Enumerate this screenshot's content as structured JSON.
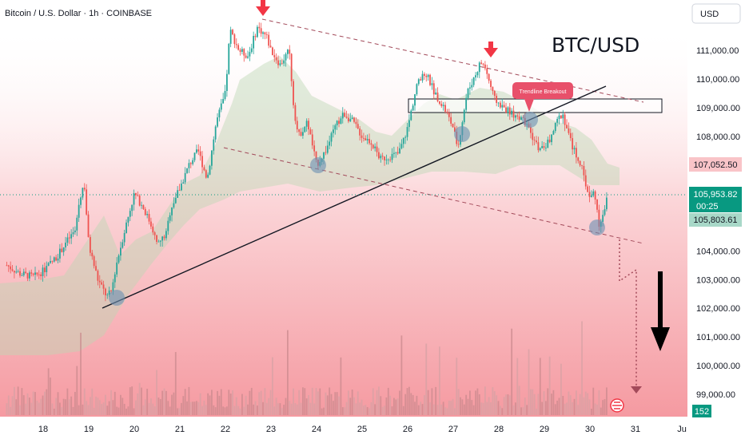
{
  "header": {
    "symbol_title": "Bitcoin / U.S. Dollar · 1h · COINBASE"
  },
  "overlay_title": "BTC/USD",
  "breakout_label": "Trendline Breakout",
  "currency_button": "USD",
  "price_badges": {
    "resistance": "107,052.50",
    "last": "105,953.82",
    "countdown": "00:25",
    "bid": "105,803.61",
    "volume": "152"
  },
  "colors": {
    "up": "#26a69a",
    "down": "#ef5350",
    "arrow": "#f23645",
    "trendline": "#131722",
    "dashed": "#a34a5a",
    "cloud_fill": "#a9d0a0",
    "background_wash": "#f7b7bc",
    "last_badge": "#089981",
    "resistance_badge": "#f9c4c8"
  },
  "chart_data": {
    "type": "candlestick",
    "title": "Bitcoin / U.S. Dollar · 1h · COINBASE",
    "x_tick_labels": [
      "18",
      "19",
      "20",
      "21",
      "22",
      "23",
      "24",
      "25",
      "26",
      "27",
      "28",
      "29",
      "30",
      "31",
      "Ju"
    ],
    "y_tick_labels": [
      "99,000.00",
      "100,000.00",
      "101,000.00",
      "102,000.00",
      "103,000.00",
      "104,000.00",
      "105,000.00",
      "106,000.00",
      "107,000.00",
      "108,000.00",
      "109,000.00",
      "110,000.00",
      "111,000.00"
    ],
    "ylim": [
      98600,
      112600
    ],
    "price_path": [
      [
        17.2,
        103500
      ],
      [
        17.5,
        103200
      ],
      [
        17.8,
        103100
      ],
      [
        18.0,
        103300
      ],
      [
        18.3,
        103800
      ],
      [
        18.5,
        104300
      ],
      [
        18.7,
        104700
      ],
      [
        18.8,
        105800
      ],
      [
        18.9,
        106400
      ],
      [
        19.0,
        104200
      ],
      [
        19.2,
        103000
      ],
      [
        19.4,
        102400
      ],
      [
        19.5,
        102600
      ],
      [
        19.6,
        103500
      ],
      [
        19.8,
        104800
      ],
      [
        20.0,
        106000
      ],
      [
        20.2,
        105500
      ],
      [
        20.4,
        104800
      ],
      [
        20.5,
        104200
      ],
      [
        20.7,
        104600
      ],
      [
        20.8,
        105500
      ],
      [
        21.0,
        106200
      ],
      [
        21.2,
        107000
      ],
      [
        21.4,
        107500
      ],
      [
        21.6,
        106500
      ],
      [
        21.8,
        108500
      ],
      [
        22.0,
        109500
      ],
      [
        22.1,
        111700
      ],
      [
        22.3,
        111000
      ],
      [
        22.5,
        110800
      ],
      [
        22.7,
        111800
      ],
      [
        22.9,
        111500
      ],
      [
        23.0,
        111000
      ],
      [
        23.2,
        110500
      ],
      [
        23.4,
        111000
      ],
      [
        23.5,
        109000
      ],
      [
        23.6,
        108000
      ],
      [
        23.8,
        108500
      ],
      [
        24.0,
        107000
      ],
      [
        24.2,
        107500
      ],
      [
        24.4,
        108300
      ],
      [
        24.6,
        108800
      ],
      [
        24.8,
        108500
      ],
      [
        25.0,
        108000
      ],
      [
        25.2,
        107800
      ],
      [
        25.4,
        107200
      ],
      [
        25.6,
        107300
      ],
      [
        25.8,
        107400
      ],
      [
        26.0,
        108300
      ],
      [
        26.2,
        109800
      ],
      [
        26.4,
        110200
      ],
      [
        26.6,
        109500
      ],
      [
        26.8,
        109000
      ],
      [
        27.0,
        108300
      ],
      [
        27.1,
        107600
      ],
      [
        27.3,
        109500
      ],
      [
        27.5,
        110200
      ],
      [
        27.6,
        110600
      ],
      [
        27.7,
        110400
      ],
      [
        27.9,
        109300
      ],
      [
        28.1,
        109000
      ],
      [
        28.3,
        108800
      ],
      [
        28.5,
        108600
      ],
      [
        28.7,
        108100
      ],
      [
        28.9,
        107500
      ],
      [
        29.1,
        107800
      ],
      [
        29.3,
        108600
      ],
      [
        29.4,
        108800
      ],
      [
        29.6,
        107700
      ],
      [
        29.8,
        107000
      ],
      [
        29.9,
        106400
      ],
      [
        30.0,
        105800
      ],
      [
        30.1,
        106100
      ],
      [
        30.2,
        104900
      ],
      [
        30.3,
        105400
      ],
      [
        30.4,
        105950
      ]
    ],
    "volumes": [
      180,
      350,
      420,
      260,
      600,
      520,
      900,
      700,
      1300,
      850,
      500,
      700,
      380,
      300,
      450,
      400,
      350,
      500,
      1100,
      650
    ],
    "annotations": [
      "BTC/USD",
      "Trendline Breakout"
    ],
    "grid": false,
    "legend": "none"
  }
}
